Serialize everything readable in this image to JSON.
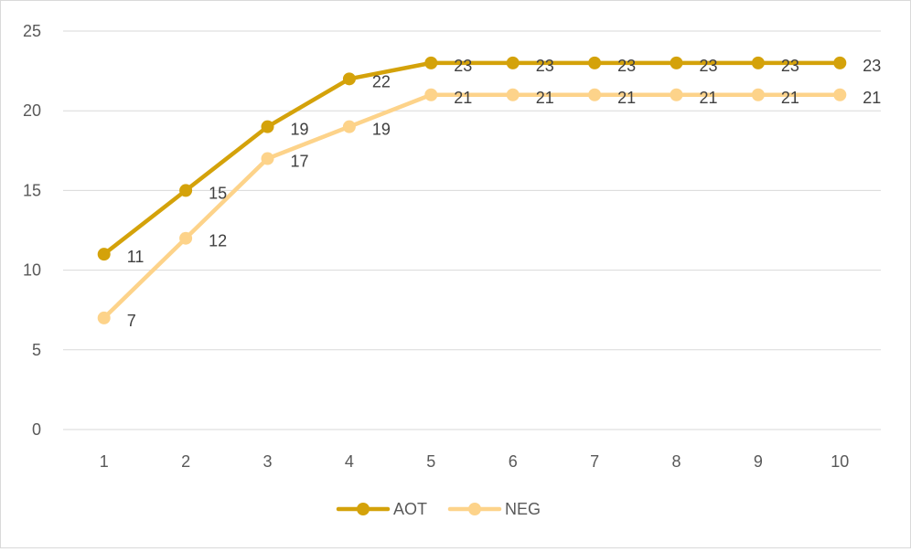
{
  "chart_data": {
    "type": "line",
    "title": "",
    "xlabel": "",
    "ylabel": "",
    "x": [
      1,
      2,
      3,
      4,
      5,
      6,
      7,
      8,
      9,
      10
    ],
    "ylim": [
      0,
      25
    ],
    "yticks": [
      0,
      5,
      10,
      15,
      20,
      25
    ],
    "grid": true,
    "legend": "bottom",
    "data_labels": true,
    "series": [
      {
        "name": "AOT",
        "color": "#d4a20a",
        "values": [
          11,
          15,
          19,
          22,
          23,
          23,
          23,
          23,
          23,
          23
        ]
      },
      {
        "name": "NEG",
        "color": "#fdd38a",
        "values": [
          7,
          12,
          17,
          19,
          21,
          21,
          21,
          21,
          21,
          21
        ]
      }
    ]
  }
}
